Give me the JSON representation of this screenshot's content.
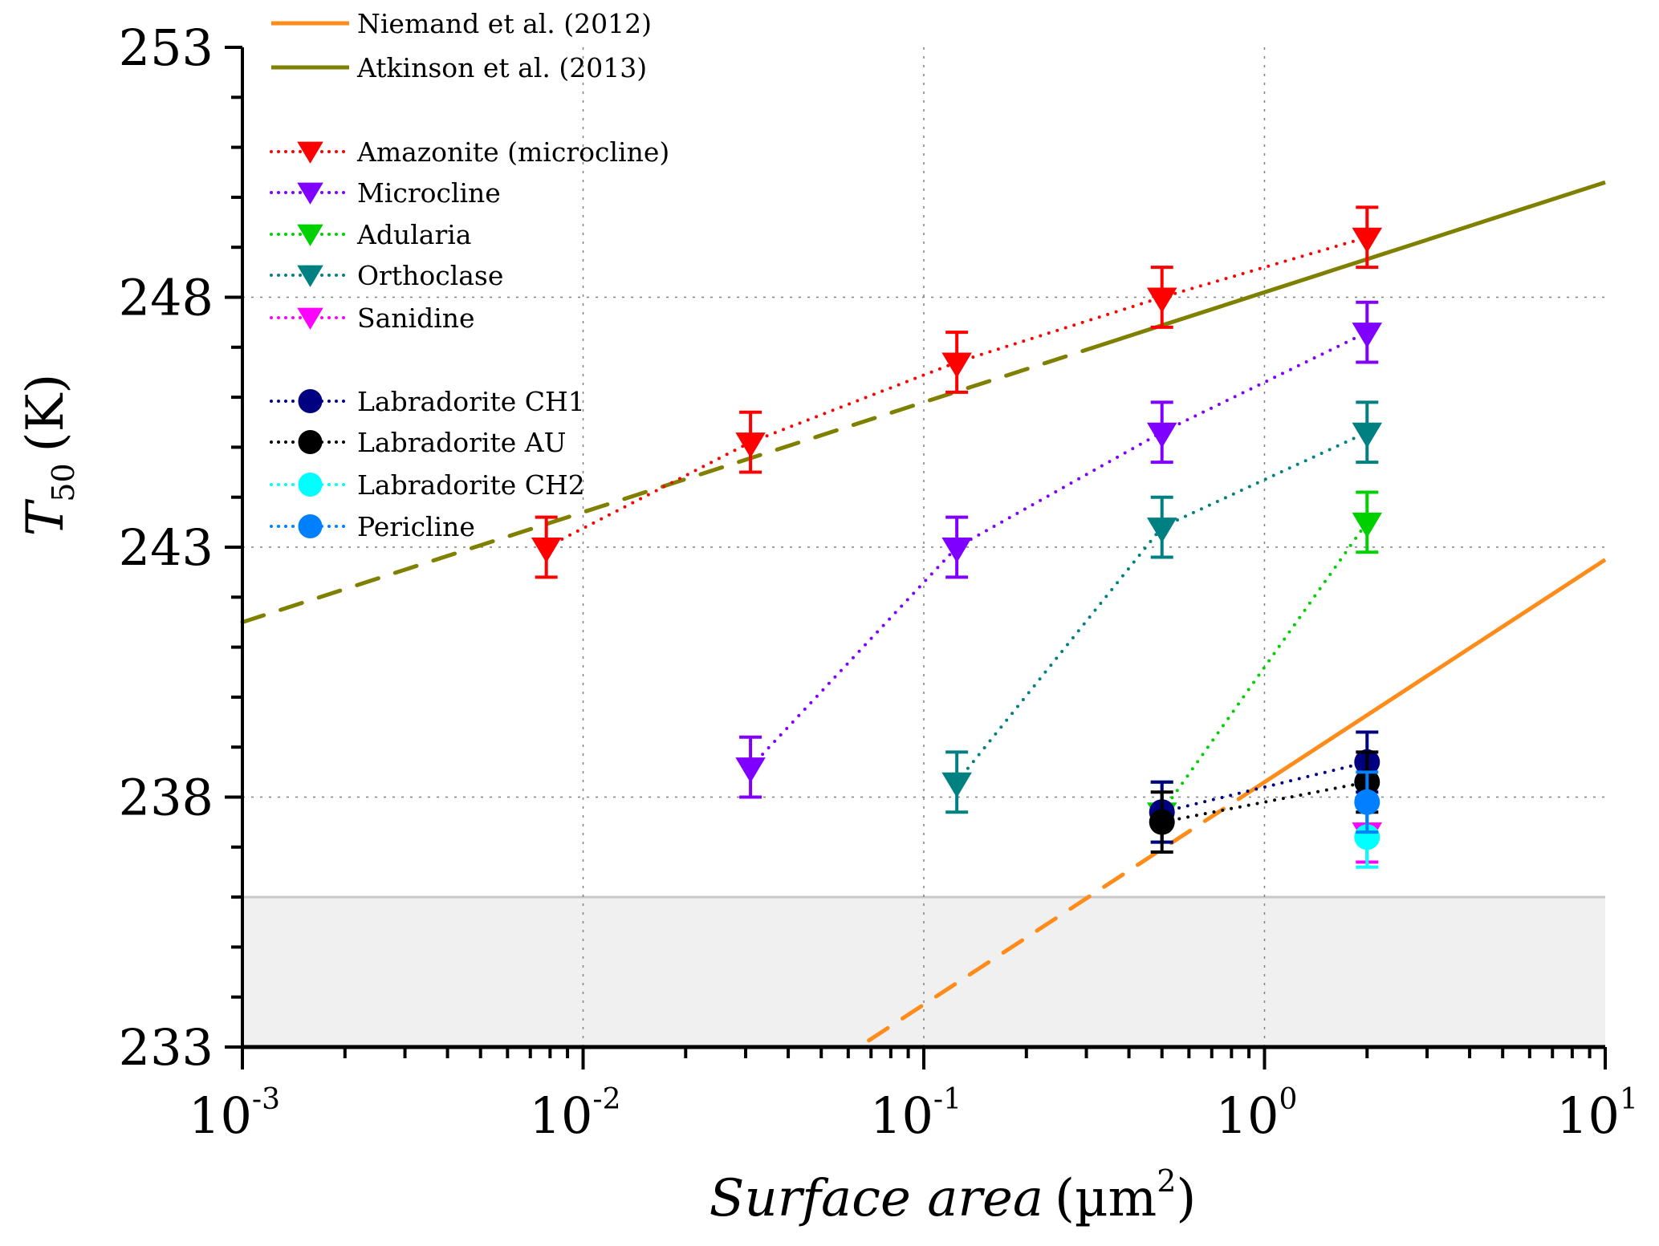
{
  "chart_data": {
    "type": "scatter",
    "title": "",
    "xlabel": "Surface area",
    "xlabel_unit": "(µm",
    "xlabel_unit_sup": "2",
    "xlabel_unit_close": ")",
    "ylabel_main": "T",
    "ylabel_sub": "50",
    "ylabel_unit": "(K)",
    "xscale": "log",
    "xlim": [
      0.001,
      10
    ],
    "ylim": [
      233,
      253
    ],
    "x_ticks": [
      {
        "value": 0.001,
        "base": "10",
        "exp": "-3"
      },
      {
        "value": 0.01,
        "base": "10",
        "exp": "-2"
      },
      {
        "value": 0.1,
        "base": "10",
        "exp": "-1"
      },
      {
        "value": 1,
        "base": "10",
        "exp": "0"
      },
      {
        "value": 10,
        "base": "10",
        "exp": "1"
      }
    ],
    "y_ticks": [
      253,
      248,
      243,
      238,
      233
    ],
    "y_minor_step": 1,
    "grid": {
      "x": [
        0.01,
        0.1,
        1
      ],
      "y": [
        248,
        243,
        238
      ]
    },
    "shaded_region": {
      "y_from": 233,
      "y_to": 236,
      "color": "#f0f0f0",
      "edge_color": "#c8c8c8"
    },
    "legend_position": "top-left",
    "parameterizations": [
      {
        "name": "Niemand et al. (2012)",
        "color": "#ff8c1a",
        "intercept_at_1um2": 238.3,
        "slope_per_decade": 4.45,
        "dashed_range": [
          0.069,
          0.84
        ],
        "solid_range": [
          0.84,
          10
        ]
      },
      {
        "name": "Atkinson et al. (2013)",
        "color": "#808000",
        "intercept_at_1um2": 248.1,
        "slope_per_decade": 2.2,
        "dashed_range": [
          0.001,
          0.32
        ],
        "solid_range": [
          0.32,
          10
        ]
      }
    ],
    "series": [
      {
        "name": "Amazonite (microcline)",
        "marker": "triangle-down",
        "color": "#ff0000",
        "x": [
          0.0078,
          0.031,
          0.125,
          0.5,
          2.0
        ],
        "y": [
          243.0,
          245.1,
          246.7,
          248.0,
          249.2
        ],
        "err": [
          0.6,
          0.6,
          0.6,
          0.6,
          0.6
        ]
      },
      {
        "name": "Microcline",
        "marker": "triangle-down",
        "color": "#8000ff",
        "x": [
          0.031,
          0.125,
          0.5,
          2.0
        ],
        "y": [
          238.6,
          243.0,
          245.3,
          247.3
        ],
        "err": [
          0.6,
          0.6,
          0.6,
          0.6
        ]
      },
      {
        "name": "Adularia",
        "marker": "triangle-down",
        "color": "#00d000",
        "x": [
          0.5,
          2.0
        ],
        "y": [
          237.7,
          243.5
        ],
        "err": [
          0.6,
          0.6
        ]
      },
      {
        "name": "Orthoclase",
        "marker": "triangle-down",
        "color": "#008080",
        "x": [
          0.125,
          0.5,
          2.0
        ],
        "y": [
          238.3,
          243.4,
          245.3
        ],
        "err": [
          0.6,
          0.6,
          0.6
        ]
      },
      {
        "name": "Sanidine",
        "marker": "triangle-down",
        "color": "#ff00ff",
        "x": [
          2.0
        ],
        "y": [
          237.3
        ],
        "err": [
          0.6
        ]
      },
      {
        "name": "Labradorite CH1",
        "marker": "circle",
        "color": "#000080",
        "x": [
          0.5,
          2.0
        ],
        "y": [
          237.7,
          238.7
        ],
        "err": [
          0.6,
          0.6
        ]
      },
      {
        "name": "Labradorite AU",
        "marker": "circle",
        "color": "#000000",
        "x": [
          0.5,
          2.0
        ],
        "y": [
          237.5,
          238.3
        ],
        "err": [
          0.6,
          0.6
        ]
      },
      {
        "name": "Labradorite CH2",
        "marker": "circle",
        "color": "#00ffff",
        "x": [
          2.0
        ],
        "y": [
          237.2
        ],
        "err": [
          0.6
        ]
      },
      {
        "name": "Pericline",
        "marker": "circle",
        "color": "#0080ff",
        "x": [
          2.0
        ],
        "y": [
          237.9
        ],
        "err": [
          0.6
        ]
      }
    ]
  }
}
